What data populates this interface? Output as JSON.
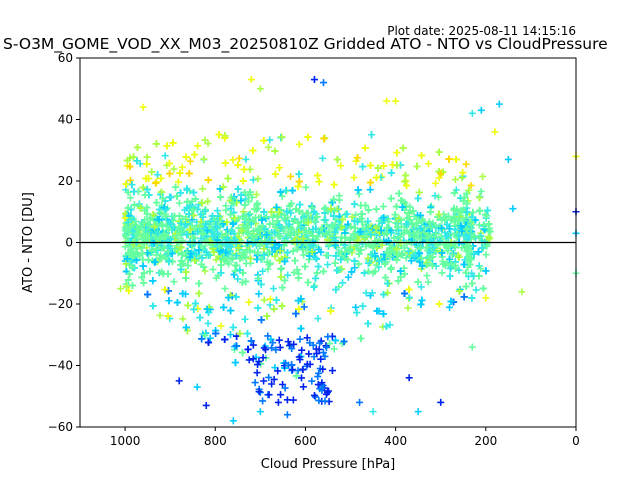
{
  "chart_data": {
    "type": "scatter",
    "title": "S-O3M_GOME_VOD_XX_M03_20250810Z Gridded ATO - NTO vs CloudPressure",
    "annotation": "Plot date: 2025-08-11 14:15:16",
    "xlabel": "Cloud Pressure [hPa]",
    "ylabel": "ATO - NTO [DU]",
    "xlim": [
      1100,
      0
    ],
    "ylim": [
      -60,
      60
    ],
    "x_inverted": true,
    "xticks": [
      1000,
      800,
      600,
      400,
      200,
      0
    ],
    "yticks": [
      -60,
      -40,
      -20,
      0,
      20,
      40,
      60
    ],
    "grid": false,
    "legend": "none",
    "marker": "plus",
    "reference_line": {
      "y": 0,
      "color": "#000000"
    },
    "colormap": [
      "#0022ee",
      "#0077ff",
      "#00ccff",
      "#33e8e8",
      "#66ffa0",
      "#aaff44",
      "#eeff11",
      "#ffd800"
    ],
    "point_cloud": {
      "x_range": [
        1000,
        120
      ],
      "core_band_y": [
        -20,
        30
      ],
      "min_y": -58,
      "max_y": 53,
      "description_of_density": "dense cluster between 1000 and 250 hPa centered near 0 DU, sparse outliers"
    },
    "outliers": [
      {
        "x": 960,
        "y": 44,
        "c": 6
      },
      {
        "x": 720,
        "y": 53,
        "c": 6
      },
      {
        "x": 700,
        "y": 50,
        "c": 5
      },
      {
        "x": 580,
        "y": 53,
        "c": 0
      },
      {
        "x": 560,
        "y": 52,
        "c": 1
      },
      {
        "x": 420,
        "y": 46,
        "c": 6
      },
      {
        "x": 400,
        "y": 46,
        "c": 6
      },
      {
        "x": 230,
        "y": 42,
        "c": 3
      },
      {
        "x": 210,
        "y": 43,
        "c": 2
      },
      {
        "x": 180,
        "y": 36,
        "c": 6
      },
      {
        "x": 170,
        "y": 45,
        "c": 2
      },
      {
        "x": 150,
        "y": 27,
        "c": 2
      },
      {
        "x": 140,
        "y": 11,
        "c": 2
      },
      {
        "x": 120,
        "y": -16,
        "c": 5
      },
      {
        "x": 0,
        "y": 28,
        "c": 6
      },
      {
        "x": 0,
        "y": 10,
        "c": 0
      },
      {
        "x": 0,
        "y": 3,
        "c": 2
      },
      {
        "x": 0,
        "y": -10,
        "c": 4
      },
      {
        "x": 200,
        "y": -18,
        "c": 6
      },
      {
        "x": 230,
        "y": -34,
        "c": 4
      },
      {
        "x": 300,
        "y": -52,
        "c": 0
      },
      {
        "x": 350,
        "y": -55,
        "c": 2
      },
      {
        "x": 370,
        "y": -44,
        "c": 0
      },
      {
        "x": 450,
        "y": -55,
        "c": 3
      },
      {
        "x": 480,
        "y": -52,
        "c": 1
      },
      {
        "x": 640,
        "y": -56,
        "c": 1
      },
      {
        "x": 660,
        "y": -52,
        "c": 0
      },
      {
        "x": 700,
        "y": -55,
        "c": 2
      },
      {
        "x": 760,
        "y": -58,
        "c": 2
      },
      {
        "x": 820,
        "y": -53,
        "c": 0
      },
      {
        "x": 840,
        "y": -47,
        "c": 2
      },
      {
        "x": 880,
        "y": -45,
        "c": 0
      },
      {
        "x": 1000,
        "y": 8,
        "c": 6
      },
      {
        "x": 1010,
        "y": -15,
        "c": 5
      }
    ]
  }
}
